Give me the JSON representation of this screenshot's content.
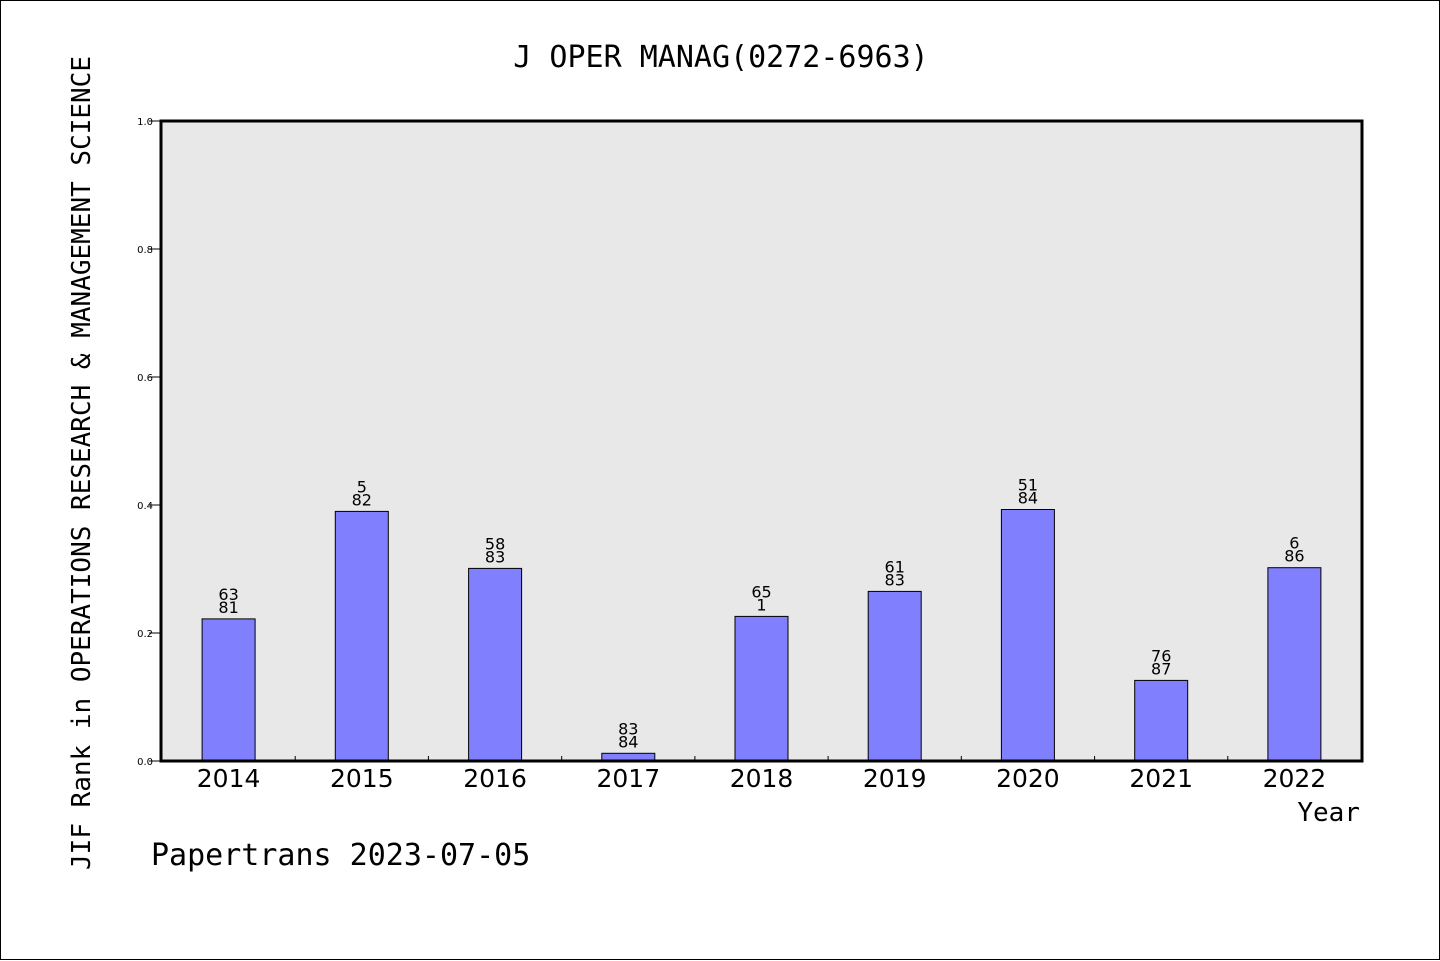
{
  "chart_data": {
    "type": "bar",
    "title": "J OPER MANAG(0272-6963)",
    "xlabel": "Year",
    "ylabel": "JIF Rank in OPERATIONS RESEARCH & MANAGEMENT SCIENCE",
    "categories": [
      "2014",
      "2015",
      "2016",
      "2017",
      "2018",
      "2019",
      "2020",
      "2021",
      "2022"
    ],
    "values": [
      0.222,
      0.39,
      0.301,
      0.012,
      0.226,
      0.265,
      0.393,
      0.126,
      0.302
    ],
    "labels_top": [
      "63",
      "5",
      "58",
      "83",
      "65",
      "61",
      "51",
      "76",
      "6"
    ],
    "labels_bottom": [
      "81",
      "82",
      "83",
      "84",
      "1",
      "83",
      "84",
      "87",
      "86"
    ],
    "ylim": [
      0,
      1.0
    ],
    "yticks": [
      "0.0",
      "0.2",
      "0.4",
      "0.6",
      "0.8",
      "1.0"
    ],
    "grid": false,
    "bar_color": "#8080ff",
    "plot_background": "#e8e8e8"
  },
  "footer": "Papertrans 2023-07-05"
}
